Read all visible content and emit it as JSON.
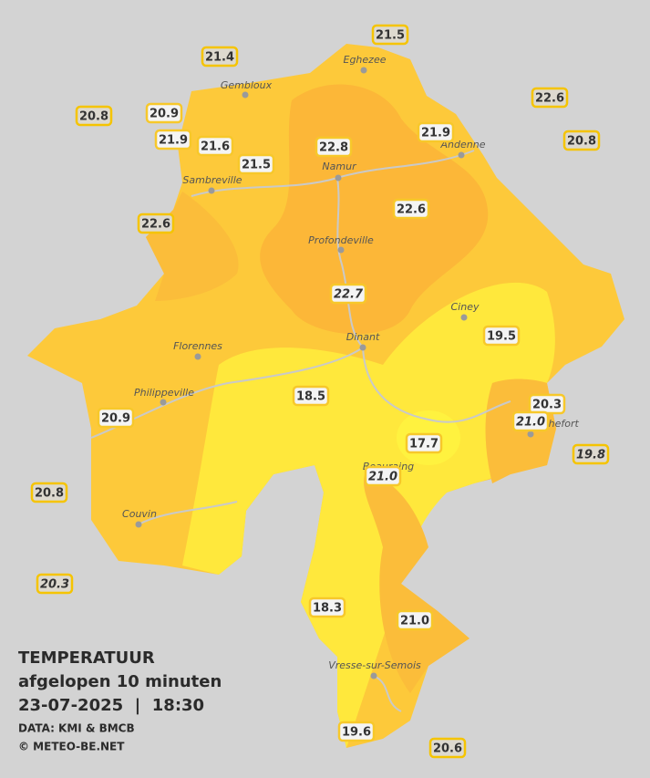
{
  "title": "TEMPERATUUR",
  "subtitle": "afgelopen 10 minuten",
  "datetime": "23-07-2025  |  18:30",
  "credits": [
    "DATA: KMI & BMCB",
    "© METEO-BE.NET"
  ],
  "cities": [
    "Eghezee",
    "Gembloux",
    "Andenne",
    "Namur",
    "Sambreville",
    "Profondeville",
    "Ciney",
    "Dinant",
    "Florennes",
    "Philippeville",
    "Rochefort",
    "Beauraing",
    "Couvin",
    "Vresse-sur-Semois"
  ],
  "stations": [
    "21.5",
    "21.4",
    "22.6",
    "20.8",
    "20.9",
    "21.9",
    "20.8",
    "21.9",
    "21.6",
    "22.8",
    "21.5",
    "22.6",
    "22.6",
    "22.7",
    "19.5",
    "18.5",
    "20.3",
    "21.0",
    "20.9",
    "17.7",
    "19.8",
    "21.0",
    "20.8",
    "20.3",
    "18.3",
    "21.0",
    "19.6",
    "20.6"
  ]
}
